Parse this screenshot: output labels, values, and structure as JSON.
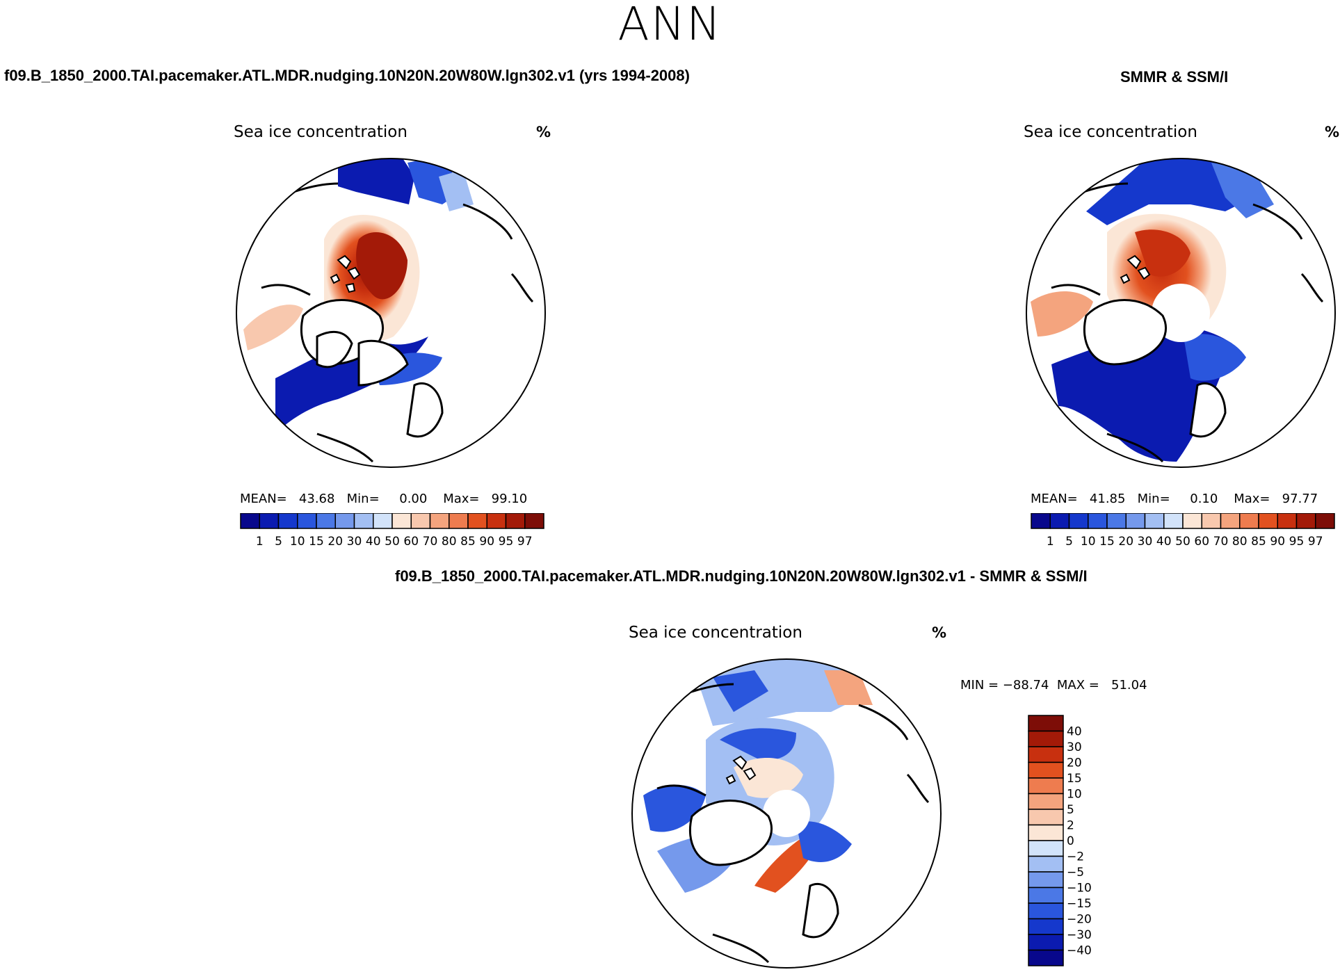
{
  "page": {
    "title": "ANN"
  },
  "panel_model": {
    "case_title": "f09.B_1850_2000.TAI.pacemaker.ATL.MDR.nudging.10N20N.20W80W.lgn302.v1 (yrs 1994-2008)",
    "plot_title": "Sea ice concentration",
    "unit": "%",
    "stats": "MEAN=   43.68   Min=     0.00    Max=   99.10"
  },
  "panel_obs": {
    "case_title": "SMMR & SSM/I",
    "plot_title": "Sea ice concentration",
    "unit": "%",
    "stats": "MEAN=   41.85   Min=     0.10    Max=   97.77"
  },
  "panel_diff": {
    "case_title": "f09.B_1850_2000.TAI.pacemaker.ATL.MDR.nudging.10N20N.20W80W.lgn302.v1 - SMMR & SSM/I",
    "plot_title": "Sea ice concentration",
    "unit": "%",
    "stats": "MIN = −88.74  MAX =   51.04"
  },
  "chart_data": [
    {
      "type": "heatmap",
      "projection": "north-polar-stereographic",
      "title": "Sea ice concentration",
      "units": "%",
      "mean": 43.68,
      "min": 0.0,
      "max": 99.1,
      "colorbar": {
        "orientation": "horizontal",
        "levels": [
          "1",
          "5",
          "10",
          "15",
          "20",
          "30",
          "40",
          "50",
          "60",
          "70",
          "80",
          "85",
          "90",
          "95",
          "97"
        ],
        "colors": [
          "#08088c",
          "#0b1bb0",
          "#1538cc",
          "#2a56dd",
          "#4b78e6",
          "#7599ec",
          "#a3bff3",
          "#d2e3fa",
          "#fbe6d6",
          "#f8c8ae",
          "#f4a47e",
          "#ee7c4f",
          "#e2511f",
          "#c8300f",
          "#a31a08",
          "#7d0d07"
        ]
      }
    },
    {
      "type": "heatmap",
      "projection": "north-polar-stereographic",
      "title": "Sea ice concentration",
      "units": "%",
      "mean": 41.85,
      "min": 0.1,
      "max": 97.77,
      "colorbar": {
        "orientation": "horizontal",
        "levels": [
          "1",
          "5",
          "10",
          "15",
          "20",
          "30",
          "40",
          "50",
          "60",
          "70",
          "80",
          "85",
          "90",
          "95",
          "97"
        ],
        "colors": [
          "#08088c",
          "#0b1bb0",
          "#1538cc",
          "#2a56dd",
          "#4b78e6",
          "#7599ec",
          "#a3bff3",
          "#d2e3fa",
          "#fbe6d6",
          "#f8c8ae",
          "#f4a47e",
          "#ee7c4f",
          "#e2511f",
          "#c8300f",
          "#a31a08",
          "#7d0d07"
        ]
      }
    },
    {
      "type": "heatmap",
      "projection": "north-polar-stereographic",
      "title": "Sea ice concentration",
      "units": "%",
      "min": -88.74,
      "max": 51.04,
      "colorbar": {
        "orientation": "vertical",
        "levels": [
          "40",
          "30",
          "20",
          "15",
          "10",
          "5",
          "2",
          "0",
          "−2",
          "−5",
          "−10",
          "−15",
          "−20",
          "−30",
          "−40"
        ],
        "colors": [
          "#7d0d07",
          "#a31a08",
          "#c8300f",
          "#e2511f",
          "#ee7c4f",
          "#f4a47e",
          "#f8c8ae",
          "#fbe6d6",
          "#d2e3fa",
          "#a3bff3",
          "#7599ec",
          "#4b78e6",
          "#2a56dd",
          "#1538cc",
          "#0b1bb0",
          "#08088c"
        ]
      }
    }
  ]
}
